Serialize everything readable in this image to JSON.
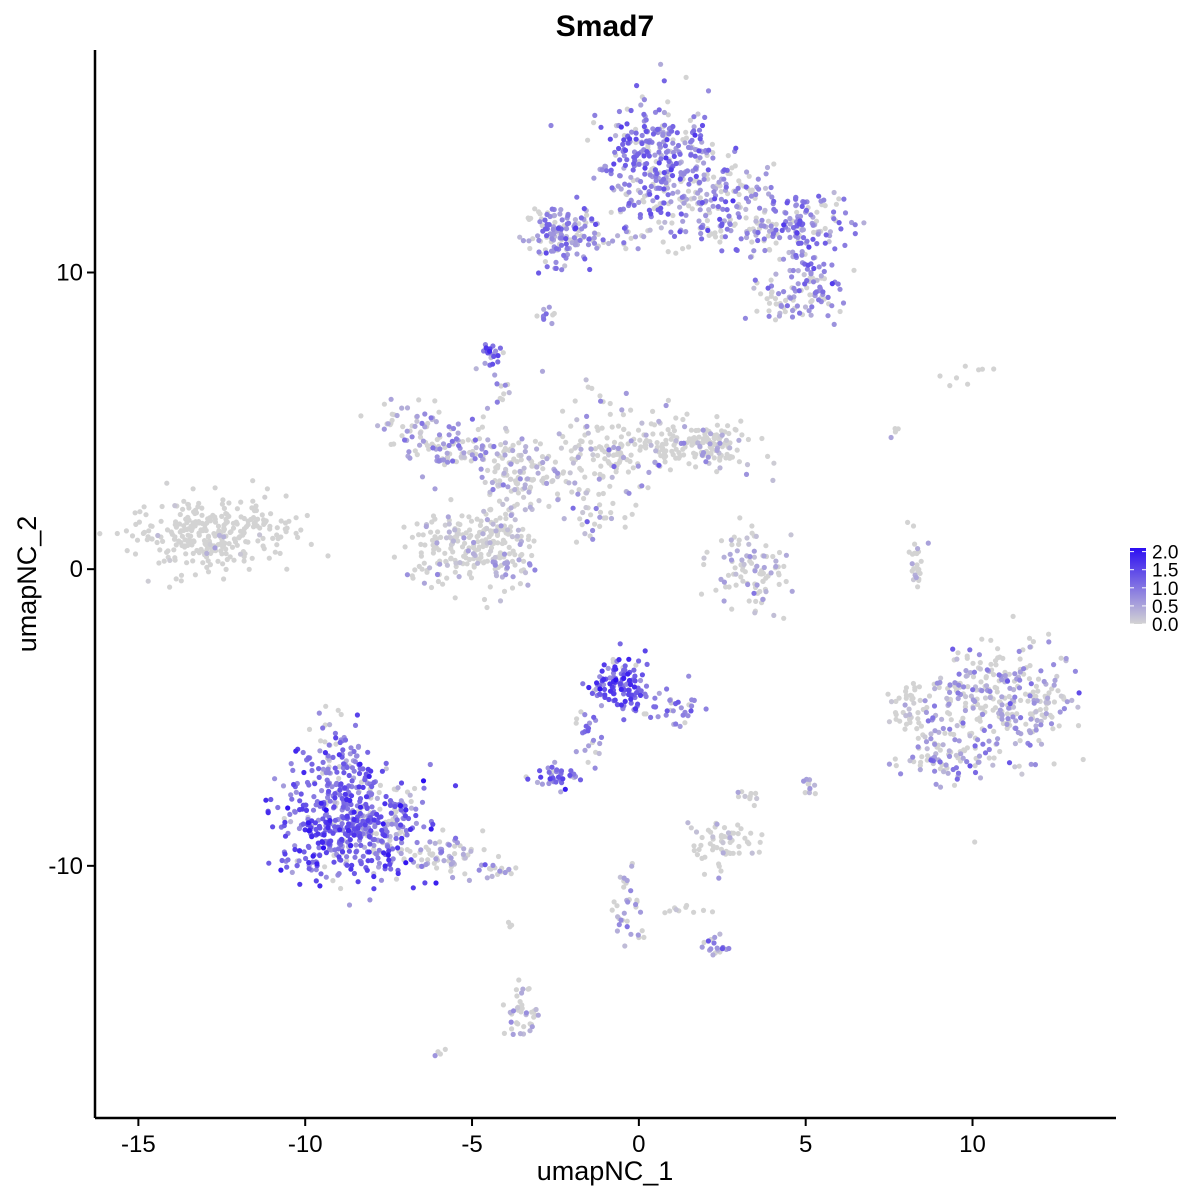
{
  "chart_data": {
    "type": "scatter",
    "title": "Smad7",
    "xlabel": "umapNC_1",
    "ylabel": "umapNC_2",
    "xlim": [
      -16.3,
      14.3
    ],
    "ylim": [
      -18.5,
      17.5
    ],
    "x_ticks": [
      -15,
      -10,
      -5,
      0,
      5,
      10
    ],
    "x_tick_labels": [
      "-15",
      "-10",
      "-5",
      "0",
      "5",
      "10"
    ],
    "y_ticks": [
      -10,
      0,
      10
    ],
    "y_tick_labels": [
      "-10",
      "0",
      "10"
    ],
    "color_low": "#d3d3d3",
    "color_high": "#2d0ff2",
    "legend": {
      "placement": "right",
      "range": [
        0,
        2.1
      ],
      "ticks": [
        0.0,
        0.5,
        1.0,
        1.5,
        2.0
      ],
      "tick_labels": [
        "0.0",
        "0.5",
        "1.0",
        "1.5",
        "2.0"
      ]
    },
    "clusters": [
      {
        "center": [
          0.5,
          13.8
        ],
        "spread": [
          0.9,
          1.0
        ],
        "n": 320,
        "expr": 0.85
      },
      {
        "center": [
          2.2,
          12.4
        ],
        "spread": [
          1.0,
          0.9
        ],
        "n": 160,
        "expr": 0.7
      },
      {
        "center": [
          4.5,
          11.5
        ],
        "spread": [
          0.9,
          0.6
        ],
        "n": 170,
        "expr": 0.75
      },
      {
        "center": [
          5.3,
          9.5
        ],
        "spread": [
          0.5,
          0.5
        ],
        "n": 70,
        "expr": 0.75
      },
      {
        "center": [
          4.2,
          9.0
        ],
        "spread": [
          0.5,
          0.4
        ],
        "n": 40,
        "expr": 0.6
      },
      {
        "center": [
          -2.4,
          11.2
        ],
        "spread": [
          0.5,
          0.5
        ],
        "n": 120,
        "expr": 0.8
      },
      {
        "center": [
          -0.8,
          11.1
        ],
        "spread": [
          1.1,
          0.15
        ],
        "n": 40,
        "expr": 0.6
      },
      {
        "center": [
          -2.8,
          8.6
        ],
        "spread": [
          0.15,
          0.2
        ],
        "n": 10,
        "expr": 0.7
      },
      {
        "center": [
          -4.4,
          7.2
        ],
        "spread": [
          0.2,
          0.25
        ],
        "n": 22,
        "expr": 1.0
      },
      {
        "center": [
          -12.8,
          1.2
        ],
        "spread": [
          1.2,
          0.6
        ],
        "n": 300,
        "expr": 0.05
      },
      {
        "center": [
          -6.8,
          5.0
        ],
        "spread": [
          0.6,
          0.4
        ],
        "n": 50,
        "expr": 0.5
      },
      {
        "center": [
          -5.5,
          4.1
        ],
        "spread": [
          0.8,
          0.4
        ],
        "n": 90,
        "expr": 0.55
      },
      {
        "center": [
          -3.5,
          3.2
        ],
        "spread": [
          0.6,
          0.6
        ],
        "n": 120,
        "expr": 0.4
      },
      {
        "center": [
          -5.2,
          0.8
        ],
        "spread": [
          0.9,
          0.6
        ],
        "n": 200,
        "expr": 0.25
      },
      {
        "center": [
          -3.9,
          0.6
        ],
        "spread": [
          0.4,
          0.9
        ],
        "n": 60,
        "expr": 0.45
      },
      {
        "center": [
          -1.0,
          3.8
        ],
        "spread": [
          0.8,
          0.9
        ],
        "n": 150,
        "expr": 0.35
      },
      {
        "center": [
          1.2,
          4.2
        ],
        "spread": [
          1.1,
          0.4
        ],
        "n": 120,
        "expr": 0.15
      },
      {
        "center": [
          2.3,
          4.1
        ],
        "spread": [
          0.4,
          0.4
        ],
        "n": 60,
        "expr": 0.4
      },
      {
        "center": [
          -1.6,
          1.5
        ],
        "spread": [
          0.4,
          0.5
        ],
        "n": 20,
        "expr": 0.7
      },
      {
        "center": [
          3.4,
          -0.3
        ],
        "spread": [
          0.6,
          0.6
        ],
        "n": 80,
        "expr": 0.35
      },
      {
        "center": [
          3.1,
          0.7
        ],
        "spread": [
          0.3,
          0.4
        ],
        "n": 20,
        "expr": 0.35
      },
      {
        "center": [
          10.7,
          -4.4
        ],
        "spread": [
          1.1,
          1.0
        ],
        "n": 330,
        "expr": 0.55
      },
      {
        "center": [
          9.2,
          -6.5
        ],
        "spread": [
          0.7,
          0.4
        ],
        "n": 70,
        "expr": 0.6
      },
      {
        "center": [
          8.1,
          -4.7
        ],
        "spread": [
          0.3,
          0.4
        ],
        "n": 40,
        "expr": 0.2
      },
      {
        "center": [
          8.3,
          0.2
        ],
        "spread": [
          0.15,
          0.5
        ],
        "n": 25,
        "expr": 0.3
      },
      {
        "center": [
          -0.6,
          -3.8
        ],
        "spread": [
          0.5,
          0.5
        ],
        "n": 110,
        "expr": 1.2
      },
      {
        "center": [
          0.7,
          -4.7
        ],
        "spread": [
          0.5,
          0.4
        ],
        "n": 40,
        "expr": 0.8
      },
      {
        "center": [
          -1.5,
          -5.5
        ],
        "spread": [
          0.2,
          0.6
        ],
        "n": 25,
        "expr": 0.8
      },
      {
        "center": [
          -2.4,
          -7.0
        ],
        "spread": [
          0.35,
          0.2
        ],
        "n": 40,
        "expr": 0.95
      },
      {
        "center": [
          -8.8,
          -8.5
        ],
        "spread": [
          1.0,
          1.0
        ],
        "n": 500,
        "expr": 1.15
      },
      {
        "center": [
          -9.1,
          -6.3
        ],
        "spread": [
          0.4,
          0.6
        ],
        "n": 60,
        "expr": 0.8
      },
      {
        "center": [
          -7.5,
          -8.5
        ],
        "spread": [
          0.5,
          0.9
        ],
        "n": 80,
        "expr": 0.5
      },
      {
        "center": [
          -6.0,
          -9.6
        ],
        "spread": [
          0.7,
          0.35
        ],
        "n": 60,
        "expr": 0.5
      },
      {
        "center": [
          -4.4,
          -10.2
        ],
        "spread": [
          0.4,
          0.2
        ],
        "n": 20,
        "expr": 0.4
      },
      {
        "center": [
          2.4,
          -9.2
        ],
        "spread": [
          0.5,
          0.5
        ],
        "n": 60,
        "expr": 0.15
      },
      {
        "center": [
          3.4,
          -7.8
        ],
        "spread": [
          0.2,
          0.2
        ],
        "n": 10,
        "expr": 0.2
      },
      {
        "center": [
          5.1,
          -7.2
        ],
        "spread": [
          0.2,
          0.2
        ],
        "n": 12,
        "expr": 0.4
      },
      {
        "center": [
          -0.4,
          -10.9
        ],
        "spread": [
          0.2,
          0.5
        ],
        "n": 20,
        "expr": 0.5
      },
      {
        "center": [
          -0.2,
          -12.0
        ],
        "spread": [
          0.3,
          0.3
        ],
        "n": 15,
        "expr": 0.6
      },
      {
        "center": [
          2.3,
          -12.7
        ],
        "spread": [
          0.3,
          0.15
        ],
        "n": 18,
        "expr": 0.8
      },
      {
        "center": [
          -3.5,
          -15.0
        ],
        "spread": [
          0.25,
          0.5
        ],
        "n": 40,
        "expr": 0.4
      },
      {
        "center": [
          -6.0,
          -16.3
        ],
        "spread": [
          0.08,
          0.08
        ],
        "n": 4,
        "expr": 0.6
      },
      {
        "center": [
          -3.8,
          -11.9
        ],
        "spread": [
          0.08,
          0.08
        ],
        "n": 3,
        "expr": 0.2
      },
      {
        "center": [
          9.5,
          6.7
        ],
        "spread": [
          0.5,
          0.2
        ],
        "n": 8,
        "expr": 0.05
      },
      {
        "center": [
          7.7,
          4.7
        ],
        "spread": [
          0.08,
          0.2
        ],
        "n": 4,
        "expr": 0.3
      },
      {
        "center": [
          -4.1,
          6.0
        ],
        "spread": [
          0.15,
          0.5
        ],
        "n": 10,
        "expr": 0.6
      },
      {
        "center": [
          1.6,
          -11.5
        ],
        "spread": [
          0.5,
          0.15
        ],
        "n": 10,
        "expr": 0.1
      }
    ]
  }
}
